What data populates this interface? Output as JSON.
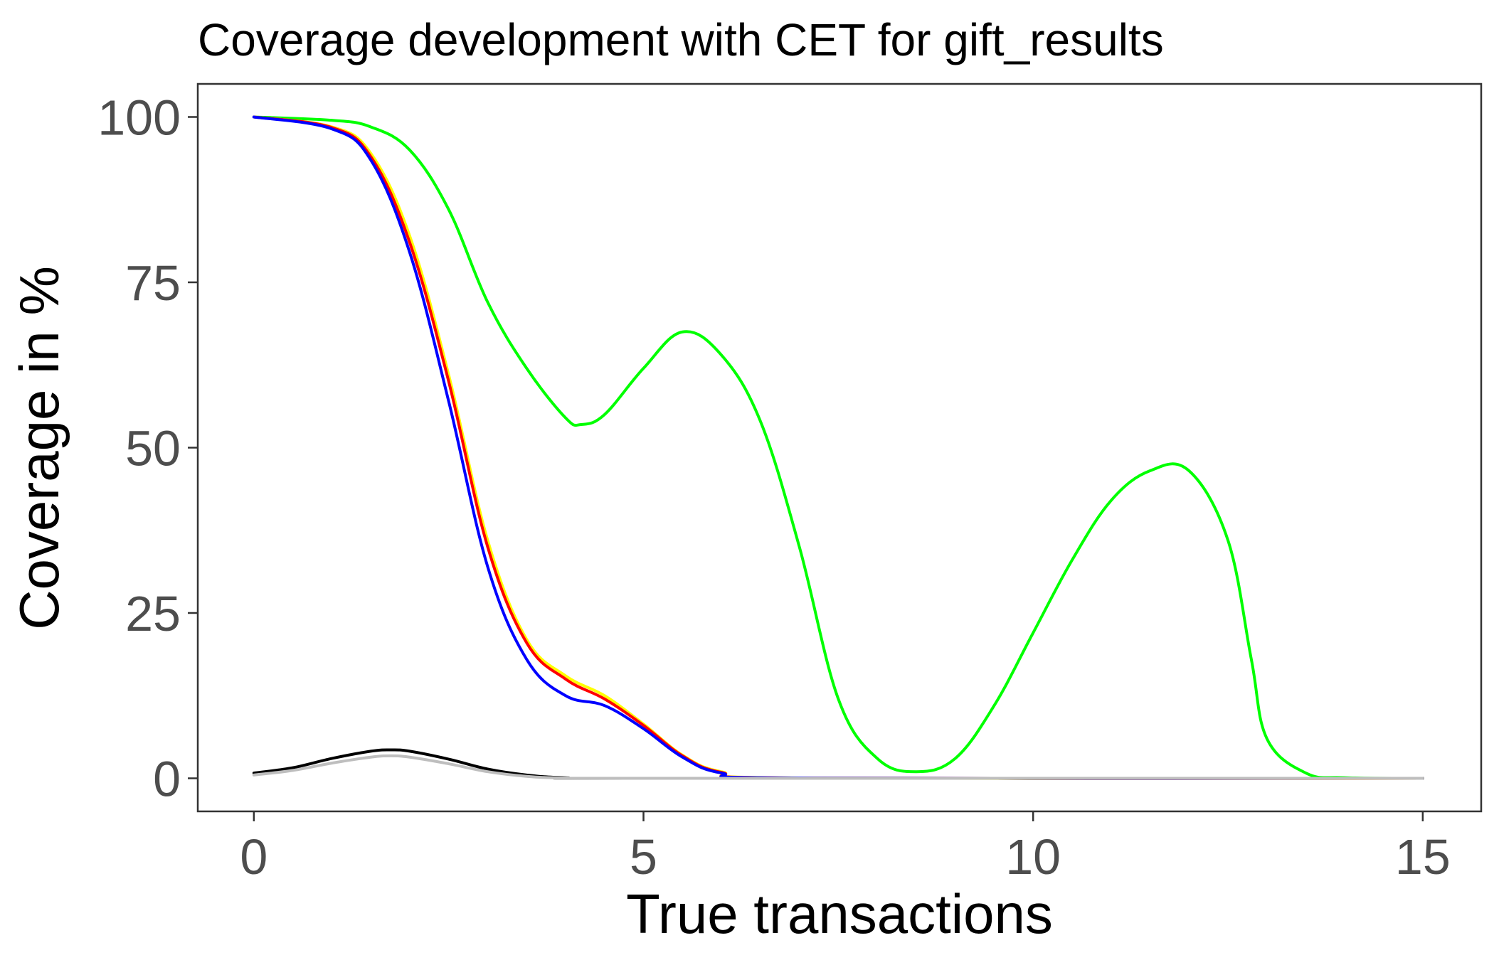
{
  "chart_data": {
    "type": "line",
    "title": "Coverage development with CET for gift_results",
    "xlabel": "True transactions",
    "ylabel": "Coverage in %",
    "xlim": [
      -0.72,
      15.75
    ],
    "ylim": [
      -5,
      105
    ],
    "xticks": [
      0,
      5,
      10,
      15
    ],
    "yticks": [
      0,
      25,
      50,
      75,
      100
    ],
    "xtick_labels": [
      "0",
      "5",
      "10",
      "15"
    ],
    "ytick_labels": [
      "0",
      "25",
      "50",
      "75",
      "100"
    ],
    "grid": false,
    "legend": "none",
    "series": [
      {
        "color": "#00ff00",
        "x": [
          0,
          1,
          1.5,
          2,
          2.5,
          3,
          3.5,
          4,
          4.2,
          4.5,
          5,
          5.5,
          6,
          6.5,
          7,
          7.5,
          8,
          8.5,
          9,
          9.5,
          10,
          10.5,
          11,
          11.5,
          12,
          12.5,
          12.8,
          13,
          13.5,
          14,
          15
        ],
        "y": [
          100,
          99.5,
          98.5,
          95,
          86,
          72,
          62,
          54.5,
          53.5,
          55,
          62,
          67.5,
          64,
          54,
          35,
          12,
          3,
          1,
          3,
          11,
          22,
          33,
          42,
          46.5,
          46.5,
          36,
          18,
          6,
          0.8,
          0.1,
          0
        ]
      },
      {
        "color": "#ffff00",
        "x": [
          0,
          1,
          1.5,
          2,
          2.5,
          3,
          3.5,
          4,
          4.5,
          5,
          5.5,
          6,
          7,
          15
        ],
        "y": [
          100,
          98.5,
          94.5,
          82,
          61,
          36,
          21,
          15.5,
          12.5,
          8.2,
          3.5,
          1,
          0.05,
          0
        ]
      },
      {
        "color": "#ff0000",
        "x": [
          0,
          1,
          1.5,
          2,
          2.5,
          3,
          3.5,
          4,
          4.5,
          5,
          5.5,
          6,
          7,
          15
        ],
        "y": [
          100,
          98.4,
          94,
          81,
          60,
          35,
          20.5,
          15,
          12,
          8,
          3.4,
          0.9,
          0.05,
          0
        ]
      },
      {
        "color": "#0000ff",
        "x": [
          0,
          1,
          1.5,
          2,
          2.5,
          3,
          3.5,
          4,
          4.5,
          5,
          5.5,
          6,
          7,
          15
        ],
        "y": [
          100,
          98.2,
          93.5,
          79.5,
          57,
          32,
          18,
          12.5,
          11,
          7.5,
          3.2,
          0.8,
          0.05,
          0
        ]
      },
      {
        "color": "#000000",
        "x": [
          0,
          0.5,
          1,
          1.5,
          1.75,
          2,
          2.5,
          3,
          3.5,
          4,
          5,
          15
        ],
        "y": [
          0.8,
          1.6,
          3,
          4.1,
          4.3,
          4.1,
          2.9,
          1.4,
          0.5,
          0.1,
          0,
          0
        ]
      },
      {
        "color": "#bebebe",
        "x": [
          0,
          0.5,
          1,
          1.5,
          1.75,
          2,
          2.5,
          3,
          3.5,
          4,
          5,
          15
        ],
        "y": [
          0.5,
          1.2,
          2.3,
          3.2,
          3.4,
          3.2,
          2.2,
          1,
          0.3,
          0.05,
          0,
          0
        ]
      }
    ]
  }
}
